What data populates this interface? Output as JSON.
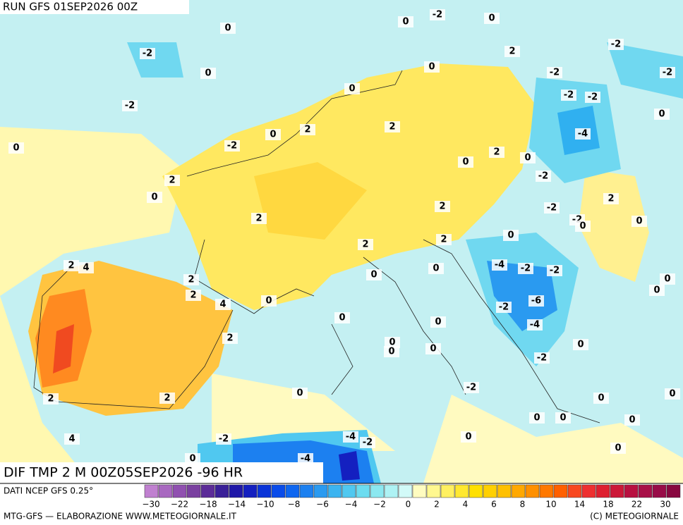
{
  "header": {
    "run": "RUN GFS 01SEP2026 00Z",
    "field": "DIF TMP 2 M 00Z05SEP2026 -96 HR"
  },
  "map": {
    "contour_labels": [
      0,
      0,
      -2,
      0,
      -2,
      0,
      2,
      0,
      0,
      -2,
      -2,
      -2,
      -2,
      -2,
      -2,
      0,
      2,
      0,
      2,
      0,
      -2,
      -4,
      2,
      0,
      0,
      2,
      -2,
      0,
      2,
      2,
      -2,
      2,
      -2,
      0,
      0,
      0,
      2,
      2,
      2,
      4,
      -4,
      -2,
      -2,
      0,
      2,
      0,
      0,
      0,
      2,
      4,
      0,
      -6,
      -2,
      0,
      0,
      -4,
      2,
      0,
      0,
      0,
      0,
      -2,
      -2,
      0,
      2,
      2,
      0,
      0,
      0,
      0,
      0,
      0,
      4,
      -2,
      -4,
      -2,
      0,
      -4,
      0
    ]
  },
  "colorbar": {
    "source": "DATI NCEP GFS 0.25°",
    "colors": [
      "#c080d0",
      "#a868c0",
      "#9050b0",
      "#7a40a0",
      "#5c2c98",
      "#3a2098",
      "#2018a8",
      "#1420c0",
      "#0a34d8",
      "#0a4cea",
      "#0e66f0",
      "#1c80f0",
      "#2a9af0",
      "#3cb4f0",
      "#50c8f0",
      "#6cdcf0",
      "#8ce8f0",
      "#aef2f4",
      "#d2faf8",
      "#fffcc0",
      "#fff890",
      "#fff060",
      "#ffe830",
      "#ffe000",
      "#ffd000",
      "#ffc000",
      "#ffa800",
      "#ff9000",
      "#ff7800",
      "#ff6000",
      "#f84820",
      "#ee3030",
      "#de2030",
      "#cc1838",
      "#b81040",
      "#a81048",
      "#980c48",
      "#880840"
    ],
    "labels": [
      "−30",
      "−22",
      "−18",
      "−14",
      "−10",
      "−8",
      "−6",
      "−4",
      "−2",
      "0",
      "2",
      "4",
      "6",
      "8",
      "10",
      "14",
      "18",
      "22",
      "30"
    ]
  },
  "footer": {
    "left": "MTG-GFS — ELABORAZIONE WWW.METEOGIORNALE.IT",
    "right": "(C) METEOGIORNALE"
  }
}
